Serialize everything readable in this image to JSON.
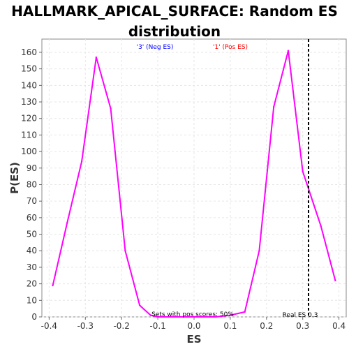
{
  "title_line1": "HALLMARK_APICAL_SURFACE: Random ES",
  "title_line2": "distribution",
  "chart_data": {
    "type": "line",
    "xlabel": "ES",
    "ylabel": "P(ES)",
    "xlim": [
      -0.42,
      0.42
    ],
    "ylim": [
      0,
      168
    ],
    "xticks": [
      "-0.4",
      "-0.3",
      "-0.2",
      "-0.1",
      "0.0",
      "0.1",
      "0.2",
      "0.3",
      "0.4"
    ],
    "xtick_values": [
      -0.4,
      -0.3,
      -0.2,
      -0.1,
      0.0,
      0.1,
      0.2,
      0.3,
      0.4
    ],
    "yticks": [
      "0",
      "10",
      "20",
      "30",
      "40",
      "50",
      "60",
      "70",
      "80",
      "90",
      "100",
      "110",
      "120",
      "130",
      "140",
      "150",
      "160"
    ],
    "ytick_values": [
      0,
      10,
      20,
      30,
      40,
      50,
      60,
      70,
      80,
      90,
      100,
      110,
      120,
      130,
      140,
      150,
      160
    ],
    "grid": true,
    "series": [
      {
        "color": "#ff00ff",
        "x": [
          -0.39,
          -0.35,
          -0.31,
          -0.27,
          -0.23,
          -0.19,
          -0.15,
          -0.12,
          -0.1,
          -0.06,
          -0.02,
          0.02,
          0.06,
          0.1,
          0.14,
          0.18,
          0.22,
          0.26,
          0.3,
          0.35,
          0.39
        ],
        "y": [
          19,
          57,
          94,
          157,
          126,
          40,
          7,
          1,
          0,
          0,
          0,
          0,
          0,
          1,
          3,
          40,
          127,
          161,
          88,
          55,
          22
        ]
      }
    ],
    "vline": {
      "x": 0.316,
      "color": "#000000",
      "style": "dashed"
    },
    "legend": [
      {
        "text": "'3' (Neg ES)",
        "color": "#0000ff"
      },
      {
        "text": "'1' (Pos ES)",
        "color": "#ff0000"
      }
    ],
    "annotations": {
      "sets_pos": "Sets with pos scores: 50%",
      "real_es": "Real ES 0.3"
    }
  }
}
